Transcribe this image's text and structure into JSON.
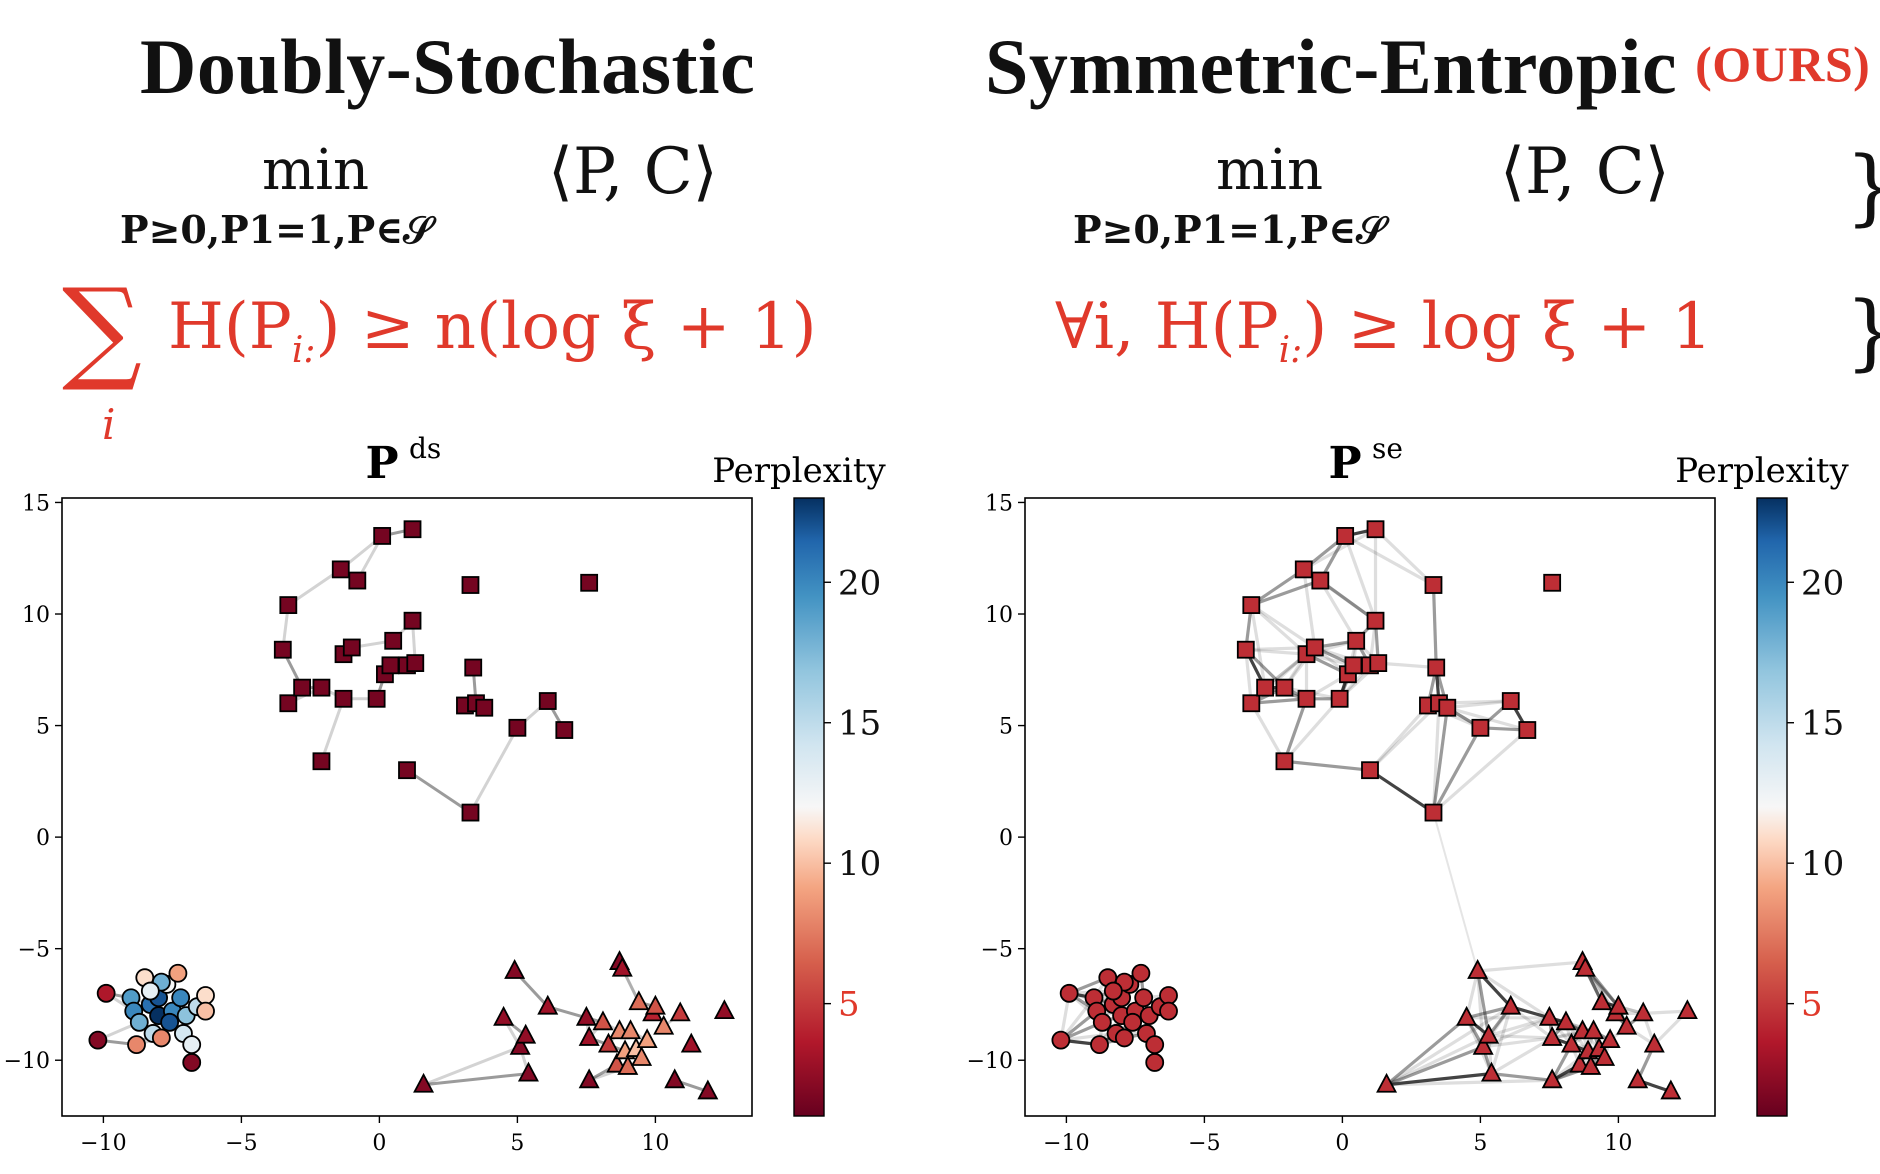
{
  "header": {
    "left_title": "Doubly-Stochastic",
    "right_title": "Symmetric-Entropic",
    "ours_badge": "(OURS)",
    "min_word": "min",
    "min_sub": "P≥0,P1=1,P∈𝒮",
    "objective": "⟨P, C⟩",
    "left_constraint": "H(P",
    "left_constraint_sub": "i:",
    "left_constraint_rhs": ") ≥ n(log ξ + 1)",
    "sum_symbol": "∑",
    "sum_index": "i",
    "right_constraint_prefix": "∀i,  H(P",
    "right_constraint_sub": "i:",
    "right_constraint_rhs": ") ≥ log ξ + 1",
    "brace": "}"
  },
  "colors": {
    "accent_red": "#e0392b",
    "dark_red": "#6b0f1e",
    "mid_red": "#d0604f",
    "blue": "#2f62a8"
  },
  "chart_data": [
    {
      "type": "scatter",
      "title_main": "P",
      "title_sup": "ds",
      "colorbar_label": "Perplexity",
      "colorbar_ticks": [
        "5",
        "10",
        "15",
        "20"
      ],
      "colorbar_range": [
        1,
        23
      ],
      "xlim": [
        -11.5,
        13.5
      ],
      "ylim": [
        -12.5,
        15.2
      ],
      "xticks": [
        -10,
        -5,
        0,
        5,
        10
      ],
      "yticks": [
        -10,
        -5,
        0,
        5,
        10,
        15
      ],
      "xtick_labels": [
        "−10",
        "−5",
        "0",
        "5",
        "10"
      ],
      "ytick_labels": [
        "−10",
        "−5",
        "0",
        "5",
        "10",
        "15"
      ],
      "series": [
        {
          "name": "squares",
          "marker": "square",
          "points": [
            [
              -3.5,
              8.4
            ],
            [
              -3.3,
              10.4
            ],
            [
              -3.3,
              6.0
            ],
            [
              -2.8,
              6.7
            ],
            [
              -2.1,
              6.7
            ],
            [
              -2.1,
              3.4
            ],
            [
              -1.4,
              12.0
            ],
            [
              -1.3,
              8.2
            ],
            [
              -1.3,
              6.2
            ],
            [
              -1.0,
              8.5
            ],
            [
              -0.8,
              11.5
            ],
            [
              -0.1,
              6.2
            ],
            [
              0.1,
              13.5
            ],
            [
              0.2,
              7.3
            ],
            [
              0.4,
              7.7
            ],
            [
              0.5,
              8.8
            ],
            [
              1.0,
              7.7
            ],
            [
              1.0,
              3.0
            ],
            [
              1.2,
              13.8
            ],
            [
              1.2,
              9.7
            ],
            [
              1.3,
              7.8
            ],
            [
              3.1,
              5.9
            ],
            [
              3.3,
              11.3
            ],
            [
              3.3,
              1.1
            ],
            [
              3.4,
              7.6
            ],
            [
              3.5,
              6.0
            ],
            [
              3.8,
              5.8
            ],
            [
              5.0,
              4.9
            ],
            [
              6.1,
              6.1
            ],
            [
              6.7,
              4.8
            ],
            [
              7.6,
              11.4
            ]
          ],
          "perplexity": [
            1.5,
            1.5,
            1.5,
            1.5,
            1.5,
            1.5,
            1.5,
            1.5,
            1.5,
            1.5,
            1.5,
            1.5,
            1.5,
            1.5,
            1.5,
            1.5,
            1.5,
            1.5,
            1.5,
            1.5,
            1.5,
            1.5,
            1.5,
            1.5,
            1.5,
            1.5,
            1.5,
            1.5,
            1.5,
            1.5,
            1.5
          ]
        },
        {
          "name": "circles",
          "marker": "circle",
          "points": [
            [
              -10.2,
              -9.1
            ],
            [
              -9.9,
              -7.0
            ],
            [
              -9.0,
              -7.2
            ],
            [
              -8.9,
              -7.8
            ],
            [
              -8.7,
              -8.3
            ],
            [
              -8.8,
              -9.3
            ],
            [
              -8.5,
              -6.3
            ],
            [
              -8.3,
              -7.5
            ],
            [
              -8.2,
              -8.8
            ],
            [
              -8.0,
              -7.2
            ],
            [
              -8.0,
              -8.0
            ],
            [
              -7.9,
              -9.0
            ],
            [
              -7.7,
              -6.6
            ],
            [
              -7.5,
              -7.8
            ],
            [
              -7.6,
              -8.3
            ],
            [
              -7.3,
              -6.1
            ],
            [
              -7.2,
              -7.2
            ],
            [
              -7.1,
              -8.8
            ],
            [
              -7.0,
              -8.0
            ],
            [
              -6.8,
              -9.3
            ],
            [
              -6.8,
              -10.1
            ],
            [
              -6.6,
              -7.6
            ],
            [
              -6.3,
              -7.1
            ],
            [
              -6.3,
              -7.8
            ],
            [
              -7.9,
              -6.5
            ],
            [
              -8.3,
              -6.9
            ]
          ],
          "perplexity": [
            2.0,
            3.5,
            19.0,
            20.0,
            18.0,
            8.0,
            11.0,
            21.0,
            15.0,
            22.0,
            23.0,
            8.0,
            12.0,
            20.0,
            22.0,
            9.0,
            20.0,
            14.0,
            17.0,
            13.0,
            2.0,
            15.0,
            11.0,
            10.0,
            18.0,
            13.0
          ]
        },
        {
          "name": "triangles",
          "marker": "triangle",
          "points": [
            [
              1.6,
              -11.1
            ],
            [
              4.5,
              -8.1
            ],
            [
              4.9,
              -6.0
            ],
            [
              5.1,
              -9.4
            ],
            [
              5.3,
              -8.9
            ],
            [
              5.4,
              -10.6
            ],
            [
              6.1,
              -7.6
            ],
            [
              7.5,
              -8.1
            ],
            [
              7.6,
              -9.0
            ],
            [
              7.6,
              -10.9
            ],
            [
              8.1,
              -8.3
            ],
            [
              8.3,
              -9.3
            ],
            [
              8.6,
              -10.2
            ],
            [
              8.7,
              -5.6
            ],
            [
              8.7,
              -8.7
            ],
            [
              8.8,
              -5.9
            ],
            [
              8.9,
              -9.6
            ],
            [
              9.0,
              -10.3
            ],
            [
              9.1,
              -8.7
            ],
            [
              9.3,
              -9.5
            ],
            [
              9.4,
              -7.4
            ],
            [
              9.5,
              -9.9
            ],
            [
              9.7,
              -9.1
            ],
            [
              9.9,
              -7.9
            ],
            [
              10.0,
              -7.6
            ],
            [
              10.3,
              -8.5
            ],
            [
              10.7,
              -10.9
            ],
            [
              10.9,
              -7.9
            ],
            [
              11.3,
              -9.3
            ],
            [
              11.9,
              -11.4
            ],
            [
              12.5,
              -7.8
            ]
          ],
          "perplexity": [
            2.0,
            2.5,
            2.0,
            2.0,
            2.5,
            2.0,
            3.0,
            2.5,
            3.0,
            2.0,
            6.0,
            5.0,
            6.0,
            2.0,
            8.0,
            3.0,
            9.0,
            7.0,
            8.0,
            10.0,
            7.0,
            8.0,
            9.0,
            4.0,
            6.0,
            8.0,
            2.0,
            5.0,
            3.0,
            2.0,
            2.5
          ]
        }
      ]
    },
    {
      "type": "scatter",
      "title_main": "P",
      "title_sup": "se",
      "colorbar_label": "Perplexity",
      "colorbar_ticks": [
        "5",
        "10",
        "15",
        "20"
      ],
      "colorbar_range": [
        1,
        23
      ],
      "xlim": [
        -11.5,
        13.5
      ],
      "ylim": [
        -12.5,
        15.2
      ],
      "xticks": [
        -10,
        -5,
        0,
        5,
        10
      ],
      "yticks": [
        -10,
        -5,
        0,
        5,
        10,
        15
      ],
      "xtick_labels": [
        "−10",
        "−5",
        "0",
        "5",
        "10"
      ],
      "ytick_labels": [
        "−10",
        "−5",
        "0",
        "5",
        "10",
        "15"
      ],
      "series": [
        {
          "name": "squares",
          "marker": "square",
          "points": [
            [
              -3.5,
              8.4
            ],
            [
              -3.3,
              10.4
            ],
            [
              -3.3,
              6.0
            ],
            [
              -2.8,
              6.7
            ],
            [
              -2.1,
              6.7
            ],
            [
              -2.1,
              3.4
            ],
            [
              -1.4,
              12.0
            ],
            [
              -1.3,
              8.2
            ],
            [
              -1.3,
              6.2
            ],
            [
              -1.0,
              8.5
            ],
            [
              -0.8,
              11.5
            ],
            [
              -0.1,
              6.2
            ],
            [
              0.1,
              13.5
            ],
            [
              0.2,
              7.3
            ],
            [
              0.4,
              7.7
            ],
            [
              0.5,
              8.8
            ],
            [
              1.0,
              7.7
            ],
            [
              1.0,
              3.0
            ],
            [
              1.2,
              13.8
            ],
            [
              1.2,
              9.7
            ],
            [
              1.3,
              7.8
            ],
            [
              3.1,
              5.9
            ],
            [
              3.3,
              11.3
            ],
            [
              3.3,
              1.1
            ],
            [
              3.4,
              7.6
            ],
            [
              3.5,
              6.0
            ],
            [
              3.8,
              5.8
            ],
            [
              5.0,
              4.9
            ],
            [
              6.1,
              6.1
            ],
            [
              6.7,
              4.8
            ],
            [
              7.6,
              11.4
            ]
          ],
          "perplexity": [
            4.5,
            4.5,
            4.5,
            4.5,
            4.5,
            4.5,
            4.5,
            4.5,
            4.5,
            4.5,
            4.5,
            4.5,
            4.5,
            4.5,
            4.5,
            4.5,
            4.5,
            4.5,
            4.5,
            4.5,
            4.5,
            4.5,
            4.5,
            4.5,
            4.5,
            4.5,
            4.5,
            4.5,
            4.5,
            4.5,
            4.5
          ]
        },
        {
          "name": "circles",
          "marker": "circle",
          "points": [
            [
              -10.2,
              -9.1
            ],
            [
              -9.9,
              -7.0
            ],
            [
              -9.0,
              -7.2
            ],
            [
              -8.9,
              -7.8
            ],
            [
              -8.7,
              -8.3
            ],
            [
              -8.8,
              -9.3
            ],
            [
              -8.5,
              -6.3
            ],
            [
              -8.3,
              -7.5
            ],
            [
              -8.2,
              -8.8
            ],
            [
              -8.0,
              -7.2
            ],
            [
              -8.0,
              -8.0
            ],
            [
              -7.9,
              -9.0
            ],
            [
              -7.7,
              -6.6
            ],
            [
              -7.5,
              -7.8
            ],
            [
              -7.6,
              -8.3
            ],
            [
              -7.3,
              -6.1
            ],
            [
              -7.2,
              -7.2
            ],
            [
              -7.1,
              -8.8
            ],
            [
              -7.0,
              -8.0
            ],
            [
              -6.8,
              -9.3
            ],
            [
              -6.8,
              -10.1
            ],
            [
              -6.6,
              -7.6
            ],
            [
              -6.3,
              -7.1
            ],
            [
              -6.3,
              -7.8
            ],
            [
              -7.9,
              -6.5
            ],
            [
              -8.3,
              -6.9
            ]
          ],
          "perplexity": [
            4.5,
            4.5,
            4.5,
            4.5,
            4.5,
            4.5,
            4.5,
            4.5,
            4.5,
            4.5,
            4.5,
            4.5,
            4.5,
            4.5,
            4.5,
            4.5,
            4.5,
            4.5,
            4.5,
            4.5,
            4.5,
            4.5,
            4.5,
            4.5,
            4.5,
            4.5
          ]
        },
        {
          "name": "triangles",
          "marker": "triangle",
          "points": [
            [
              1.6,
              -11.1
            ],
            [
              4.5,
              -8.1
            ],
            [
              4.9,
              -6.0
            ],
            [
              5.1,
              -9.4
            ],
            [
              5.3,
              -8.9
            ],
            [
              5.4,
              -10.6
            ],
            [
              6.1,
              -7.6
            ],
            [
              7.5,
              -8.1
            ],
            [
              7.6,
              -9.0
            ],
            [
              7.6,
              -10.9
            ],
            [
              8.1,
              -8.3
            ],
            [
              8.3,
              -9.3
            ],
            [
              8.6,
              -10.2
            ],
            [
              8.7,
              -5.6
            ],
            [
              8.7,
              -8.7
            ],
            [
              8.8,
              -5.9
            ],
            [
              8.9,
              -9.6
            ],
            [
              9.0,
              -10.3
            ],
            [
              9.1,
              -8.7
            ],
            [
              9.3,
              -9.5
            ],
            [
              9.4,
              -7.4
            ],
            [
              9.5,
              -9.9
            ],
            [
              9.7,
              -9.1
            ],
            [
              9.9,
              -7.9
            ],
            [
              10.0,
              -7.6
            ],
            [
              10.3,
              -8.5
            ],
            [
              10.7,
              -10.9
            ],
            [
              10.9,
              -7.9
            ],
            [
              11.3,
              -9.3
            ],
            [
              11.9,
              -11.4
            ],
            [
              12.5,
              -7.8
            ]
          ],
          "perplexity": [
            4.5,
            4.5,
            4.5,
            4.5,
            4.5,
            4.5,
            4.5,
            4.5,
            4.5,
            4.5,
            4.5,
            4.5,
            4.5,
            4.5,
            4.5,
            4.5,
            4.5,
            4.5,
            4.5,
            4.5,
            4.5,
            4.5,
            4.5,
            4.5,
            4.5,
            4.5,
            4.5,
            4.5,
            4.5,
            4.5,
            4.5
          ]
        }
      ]
    }
  ]
}
